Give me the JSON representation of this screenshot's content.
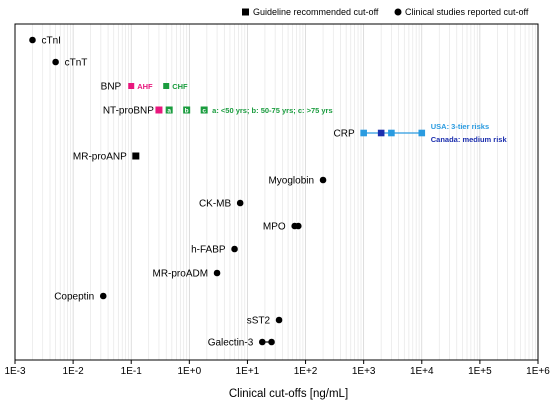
{
  "chart_data": {
    "type": "scatter",
    "title": "",
    "xlabel": "Clinical cut-offs [ng/mL]",
    "ylabel": "",
    "xscale": "log",
    "xlim": [
      0.001,
      1000000
    ],
    "x_tick_labels": [
      "1E-3",
      "1E-2",
      "1E-1",
      "1E+0",
      "1E+1",
      "1E+2",
      "1E+3",
      "1E+4",
      "1E+5",
      "1E+6"
    ],
    "grid": "vertical minor gridlines",
    "legend": {
      "placement": "top-right",
      "entries": [
        {
          "marker": "square",
          "label": "Guideline recommended cut-off"
        },
        {
          "marker": "circle",
          "label": "Clinical studies reported cut-off"
        }
      ]
    },
    "points": [
      {
        "label": "cTnI",
        "x": [
          0.002
        ],
        "marker": "circle"
      },
      {
        "label": "cTnT",
        "x": [
          0.005
        ],
        "marker": "circle"
      },
      {
        "label": "MR-proANP",
        "x": [
          0.12
        ],
        "marker": "square"
      },
      {
        "label": "Myoglobin",
        "x": [
          200
        ],
        "marker": "circle"
      },
      {
        "label": "CK-MB",
        "x": [
          7.5
        ],
        "marker": "circle"
      },
      {
        "label": "MPO",
        "x": [
          65,
          75
        ],
        "marker": "circle"
      },
      {
        "label": "h-FABP",
        "x": [
          6
        ],
        "marker": "circle"
      },
      {
        "label": "MR-proADM",
        "x": [
          3
        ],
        "marker": "circle"
      },
      {
        "label": "Copeptin",
        "x": [
          0.033
        ],
        "marker": "circle"
      },
      {
        "label": "sST2",
        "x": [
          35
        ],
        "marker": "circle"
      },
      {
        "label": "Galectin-3",
        "x": [
          18,
          26
        ],
        "marker": "circle"
      }
    ],
    "BNP": {
      "label": "BNP",
      "markers": [
        {
          "x": 0.1,
          "color": "#e8177d",
          "text": "AHF"
        },
        {
          "x": 0.4,
          "color": "#1a9c3e",
          "text": "CHF"
        }
      ]
    },
    "NT_proBNP": {
      "label": "NT-proBNP",
      "markers": [
        {
          "x": 0.3,
          "color": "#e8177d",
          "text": ""
        },
        {
          "x": 0.45,
          "color": "#1a9c3e",
          "text": "a"
        },
        {
          "x": 0.9,
          "color": "#1a9c3e",
          "text": "b"
        },
        {
          "x": 1.8,
          "color": "#1a9c3e",
          "text": "c"
        }
      ],
      "note": "a: <50 yrs;   b: 50-75 yrs;   c: >75 yrs",
      "note_color": "#1a9c3e"
    },
    "CRP": {
      "label": "CRP",
      "line_x": [
        1000,
        10000
      ],
      "markers": [
        {
          "x": 1000,
          "color": "#2a9be0"
        },
        {
          "x": 2000,
          "color": "#1c2fae"
        },
        {
          "x": 3000,
          "color": "#2a9be0"
        },
        {
          "x": 10000,
          "color": "#2a9be0"
        }
      ],
      "note_usa": "USA: 3-tier risks",
      "note_usa_color": "#2a9be0",
      "note_canada": "Canada: medium risk",
      "note_canada_color": "#1c2fae"
    }
  }
}
